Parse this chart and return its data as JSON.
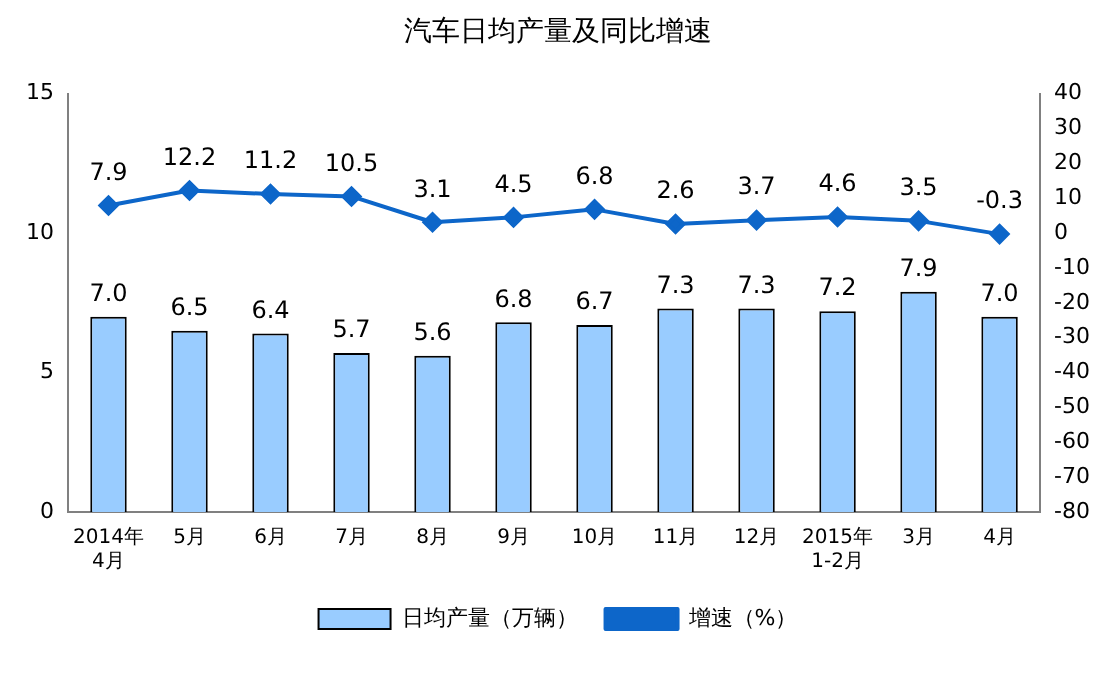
{
  "chart_data": {
    "type": "bar",
    "title": "汽车日均产量及同比增速",
    "categories": [
      "2014年\n4月",
      "5月",
      "6月",
      "7月",
      "8月",
      "9月",
      "10月",
      "11月",
      "12月",
      "2015年\n1-2月",
      "3月",
      "4月"
    ],
    "series": [
      {
        "name": "日均产量（万辆）",
        "color": "#99ccff",
        "values": [
          7.0,
          6.5,
          6.4,
          5.7,
          5.6,
          6.8,
          6.7,
          7.3,
          7.3,
          7.2,
          7.9,
          7.0
        ],
        "value_labels": [
          "7.0",
          "6.5",
          "6.4",
          "5.7",
          "5.6",
          "6.8",
          "6.7",
          "7.3",
          "7.3",
          "7.2",
          "7.9",
          "7.0"
        ]
      },
      {
        "name": "增速（%）",
        "type": "line",
        "axis": "y2",
        "color": "#0d66c9",
        "values": [
          7.9,
          12.2,
          11.2,
          10.5,
          3.1,
          4.5,
          6.8,
          2.6,
          3.7,
          4.6,
          3.5,
          -0.3
        ],
        "value_labels": [
          "7.9",
          "12.2",
          "11.2",
          "10.5",
          "3.1",
          "4.5",
          "6.8",
          "2.6",
          "3.7",
          "4.6",
          "3.5",
          "-0.3"
        ]
      }
    ],
    "ylim": [
      0,
      15
    ],
    "yticks": [
      0,
      5,
      10,
      15
    ],
    "y2lim": [
      -80,
      40
    ],
    "y2ticks": [
      -80,
      -70,
      -60,
      -50,
      -40,
      -30,
      -20,
      -10,
      0,
      10,
      20,
      30,
      40
    ],
    "grid": false,
    "legend": "bottom",
    "marker": "diamond",
    "line_style": "solid"
  }
}
